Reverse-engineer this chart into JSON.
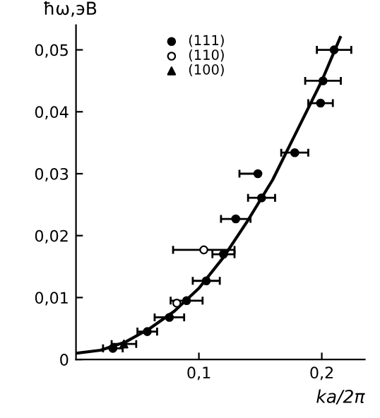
{
  "chart_data": {
    "type": "scatter",
    "xlabel": "ka/2π",
    "ylabel": "ħω,эВ",
    "xlim": [
      0,
      0.235
    ],
    "ylim": [
      0,
      0.054
    ],
    "xticks": [
      {
        "value": 0.1,
        "label": "0,1"
      },
      {
        "value": 0.2,
        "label": "0,2"
      }
    ],
    "yticks": [
      0,
      {
        "value": 0.01,
        "label": "0,01"
      },
      {
        "value": 0.02,
        "label": "0,02"
      },
      {
        "value": 0.03,
        "label": "0,03"
      },
      {
        "value": 0.04,
        "label": "0,04"
      },
      {
        "value": 0.05,
        "label": "0,05"
      }
    ],
    "grid": false,
    "legend": "top left",
    "series": [
      {
        "name": "(111)",
        "marker": "circle",
        "color": "#000000",
        "x": [
          0.21,
          0.201,
          0.199,
          0.178,
          0.148,
          0.151,
          0.13,
          0.12,
          0.106,
          0.09,
          0.076,
          0.058,
          0.03
        ],
        "values": [
          0.05,
          0.045,
          0.0414,
          0.0334,
          0.03,
          0.0261,
          0.0227,
          0.017,
          0.0127,
          0.0095,
          0.0068,
          0.0045,
          0.0018
        ],
        "xerrors": [
          0.014,
          0.0145,
          0.01,
          0.011,
          [
            0.133,
            0.148
          ],
          0.011,
          0.012,
          0.009,
          0.011,
          0.013,
          0.012,
          0.008,
          0.008
        ]
      },
      {
        "name": "(110)",
        "marker": "open circle",
        "color": "#000000",
        "x": [
          0.104,
          0.082
        ],
        "values": [
          0.0177,
          0.0091
        ],
        "xerrors": [
          0.025,
          null
        ]
      },
      {
        "name": "(100)",
        "marker": "triangle",
        "color": "#000000",
        "x": [
          0.039
        ],
        "values": [
          0.0025
        ],
        "xerrors": [
          0.01
        ]
      },
      {
        "type": "line",
        "color": "#000000",
        "x": [
          0,
          0.02,
          0.04,
          0.06,
          0.08,
          0.1,
          0.12,
          0.14,
          0.16,
          0.18,
          0.2,
          0.215
        ],
        "values": [
          0.001,
          0.0015,
          0.0028,
          0.005,
          0.0078,
          0.0115,
          0.0165,
          0.0225,
          0.029,
          0.037,
          0.045,
          0.052
        ]
      }
    ]
  }
}
